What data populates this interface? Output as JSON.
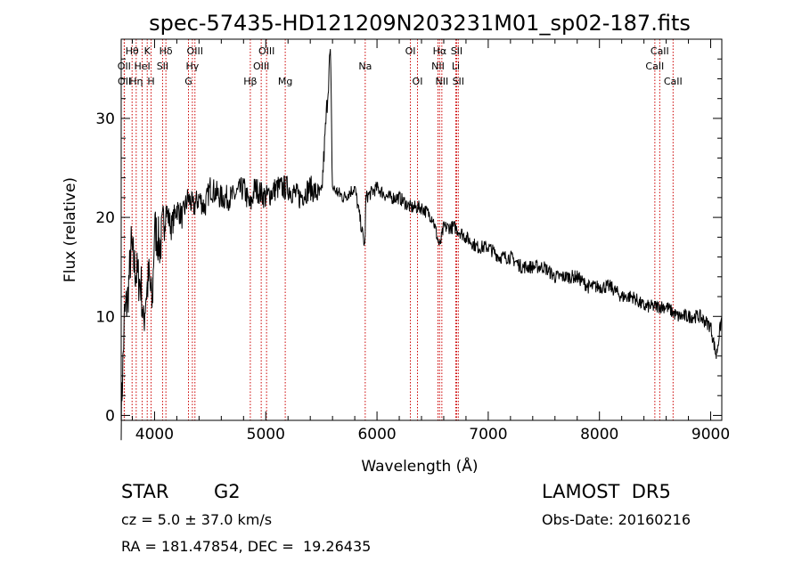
{
  "chart_data": {
    "type": "line",
    "title": "spec-57435-HD121209N203231M01_sp02-187.fits",
    "xlabel": "Wavelength (Å)",
    "ylabel": "Flux (relative)",
    "xlim": [
      3700,
      9100
    ],
    "ylim": [
      -0.5,
      38
    ],
    "xticks": [
      4000,
      5000,
      6000,
      7000,
      8000,
      9000
    ],
    "yticks": [
      0,
      10,
      20,
      30
    ],
    "grid": false,
    "line_color": "#000000",
    "marker_color": "#cc0000",
    "series": [
      {
        "x": [
          3700,
          3730,
          3760,
          3790,
          3820,
          3850,
          3880,
          3900,
          3920,
          3950,
          3980,
          4000,
          4050,
          4100,
          4150,
          4200,
          4250,
          4300,
          4350,
          4400,
          4450,
          4500,
          4600,
          4700,
          4800,
          4860,
          4900,
          5000,
          5100,
          5200,
          5300,
          5400,
          5500,
          5580,
          5600,
          5700,
          5800,
          5890,
          5900,
          6000,
          6100,
          6200,
          6300,
          6400,
          6500,
          6563,
          6600,
          6700,
          6800,
          6900,
          7000,
          7100,
          7200,
          7300,
          7400,
          7500,
          7600,
          7700,
          7800,
          7900,
          8000,
          8100,
          8200,
          8300,
          8400,
          8500,
          8600,
          8700,
          8800,
          8900,
          9000,
          9050,
          9100
        ],
        "values": [
          0,
          10,
          12,
          17,
          15,
          14,
          13,
          9,
          12,
          14,
          11,
          19,
          17,
          21,
          19,
          21,
          20,
          22,
          21,
          22,
          21,
          23,
          22,
          22,
          23,
          21,
          23,
          22,
          23,
          23,
          22,
          23,
          22,
          37,
          23,
          22,
          23,
          17,
          22,
          23,
          22,
          22,
          21,
          21,
          20,
          17,
          19,
          19,
          18,
          17,
          17,
          16,
          16,
          15,
          15,
          15,
          14,
          14,
          14,
          13,
          13,
          13,
          12,
          12,
          11,
          11,
          11,
          10,
          10,
          10,
          9,
          6,
          10
        ]
      }
    ],
    "lines": [
      {
        "label": "Hθ",
        "wl": 3798,
        "row": 0
      },
      {
        "label": "OII",
        "wl": 3727,
        "row": 1
      },
      {
        "label": "OII",
        "wl": 3729,
        "row": 2
      },
      {
        "label": "Hη",
        "wl": 3835,
        "row": 2
      },
      {
        "label": "K",
        "wl": 3934,
        "row": 0
      },
      {
        "label": "HeI",
        "wl": 3889,
        "row": 1
      },
      {
        "label": "H",
        "wl": 3969,
        "row": 2
      },
      {
        "label": "Hδ",
        "wl": 4102,
        "row": 0
      },
      {
        "label": "SII",
        "wl": 4072,
        "row": 1
      },
      {
        "label": "OIII",
        "wl": 4363,
        "row": 0
      },
      {
        "label": "Hγ",
        "wl": 4340,
        "row": 1
      },
      {
        "label": "G",
        "wl": 4305,
        "row": 2
      },
      {
        "label": "OIII",
        "wl": 5007,
        "row": 0
      },
      {
        "label": "OIII",
        "wl": 4959,
        "row": 1
      },
      {
        "label": "Hβ",
        "wl": 4861,
        "row": 2
      },
      {
        "label": "Mg",
        "wl": 5175,
        "row": 2
      },
      {
        "label": "Na",
        "wl": 5894,
        "row": 1
      },
      {
        "label": "OI",
        "wl": 6300,
        "row": 0
      },
      {
        "label": "OI",
        "wl": 6364,
        "row": 2
      },
      {
        "label": "Hα",
        "wl": 6563,
        "row": 0
      },
      {
        "label": "SII",
        "wl": 6716,
        "row": 0
      },
      {
        "label": "NII",
        "wl": 6548,
        "row": 1
      },
      {
        "label": "Li",
        "wl": 6708,
        "row": 1
      },
      {
        "label": "NII",
        "wl": 6583,
        "row": 2
      },
      {
        "label": "SII",
        "wl": 6731,
        "row": 2
      },
      {
        "label": "CaII",
        "wl": 8542,
        "row": 0
      },
      {
        "label": "CaII",
        "wl": 8498,
        "row": 1
      },
      {
        "label": "CaII",
        "wl": 8662,
        "row": 2
      }
    ]
  },
  "info": {
    "class_label": "STAR",
    "subclass": "G2",
    "survey": "LAMOST  DR5",
    "cz": "cz = 5.0 ± 37.0 km/s",
    "obs_date": "Obs-Date: 20160216",
    "coords": "RA = 181.47854, DEC =  19.26435"
  }
}
